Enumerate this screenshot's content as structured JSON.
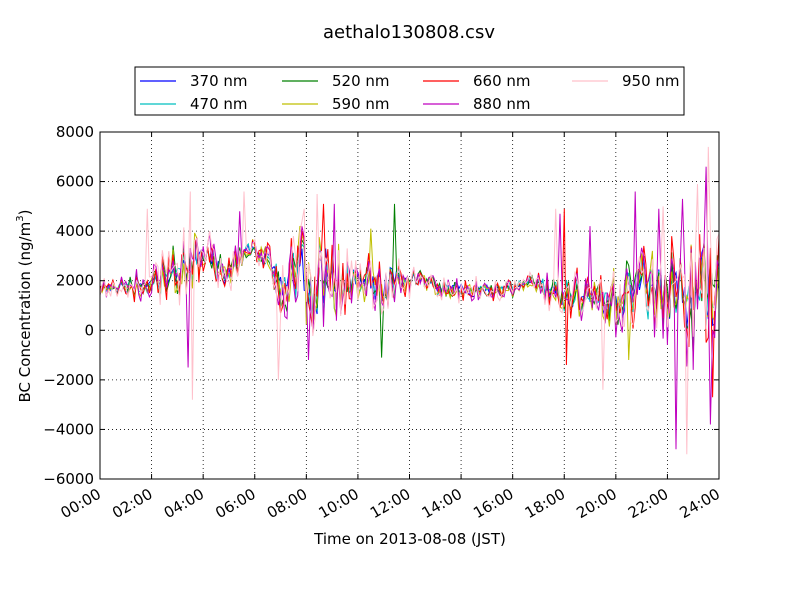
{
  "chart_data": {
    "type": "line",
    "title": "aethalo130808.csv",
    "xlabel": "Time on 2013-08-08 (JST)",
    "ylabel_main": "BC Concentration (ng/m",
    "ylabel_sup": "3",
    "ylabel_end": ")",
    "xlim": [
      "00:00",
      "24:00"
    ],
    "ylim": [
      -6000,
      8000
    ],
    "x_ticks": [
      "00:00",
      "02:00",
      "04:00",
      "06:00",
      "08:00",
      "10:00",
      "12:00",
      "14:00",
      "16:00",
      "18:00",
      "20:00",
      "22:00",
      "24:00"
    ],
    "y_ticks": [
      -6000,
      -4000,
      -2000,
      0,
      2000,
      4000,
      6000,
      8000
    ],
    "grid": true,
    "legend_position": "top",
    "sample_interval_minutes": 5,
    "series": [
      {
        "name": "370 nm",
        "color": "#0000ff"
      },
      {
        "name": "470 nm",
        "color": "#00bfbf"
      },
      {
        "name": "520 nm",
        "color": "#008000"
      },
      {
        "name": "590 nm",
        "color": "#bfbf00"
      },
      {
        "name": "660 nm",
        "color": "#ff0000"
      },
      {
        "name": "880 nm",
        "color": "#bf00bf"
      },
      {
        "name": "950 nm",
        "color": "#ffc0cb"
      }
    ],
    "baseline": [
      {
        "time": "00:00",
        "value": 1800
      },
      {
        "time": "01:00",
        "value": 1700
      },
      {
        "time": "02:00",
        "value": 1900
      },
      {
        "time": "03:00",
        "value": 2300
      },
      {
        "time": "04:00",
        "value": 3000
      },
      {
        "time": "05:00",
        "value": 2500
      },
      {
        "time": "06:00",
        "value": 3300
      },
      {
        "time": "07:00",
        "value": 2100
      },
      {
        "time": "08:00",
        "value": 2300
      },
      {
        "time": "09:00",
        "value": 1800
      },
      {
        "time": "10:00",
        "value": 1800
      },
      {
        "time": "11:00",
        "value": 2000
      },
      {
        "time": "12:00",
        "value": 2000
      },
      {
        "time": "13:00",
        "value": 1700
      },
      {
        "time": "14:00",
        "value": 1600
      },
      {
        "time": "15:00",
        "value": 1600
      },
      {
        "time": "16:00",
        "value": 1700
      },
      {
        "time": "17:00",
        "value": 1900
      },
      {
        "time": "18:00",
        "value": 1400
      },
      {
        "time": "19:00",
        "value": 1500
      },
      {
        "time": "20:00",
        "value": 1400
      },
      {
        "time": "21:00",
        "value": 1800
      },
      {
        "time": "22:00",
        "value": 1700
      },
      {
        "time": "23:00",
        "value": 1400
      },
      {
        "time": "24:00",
        "value": 1600
      }
    ],
    "noise_amplitude": [
      {
        "time": "00:00",
        "value": 300
      },
      {
        "time": "01:00",
        "value": 500
      },
      {
        "time": "02:00",
        "value": 700
      },
      {
        "time": "03:00",
        "value": 1300
      },
      {
        "time": "04:00",
        "value": 1000
      },
      {
        "time": "05:00",
        "value": 900
      },
      {
        "time": "06:00",
        "value": 400
      },
      {
        "time": "07:00",
        "value": 1300
      },
      {
        "time": "08:00",
        "value": 2000
      },
      {
        "time": "09:00",
        "value": 1800
      },
      {
        "time": "10:00",
        "value": 1200
      },
      {
        "time": "11:00",
        "value": 1300
      },
      {
        "time": "12:00",
        "value": 600
      },
      {
        "time": "13:00",
        "value": 500
      },
      {
        "time": "14:00",
        "value": 500
      },
      {
        "time": "15:00",
        "value": 500
      },
      {
        "time": "16:00",
        "value": 400
      },
      {
        "time": "17:00",
        "value": 500
      },
      {
        "time": "18:00",
        "value": 1000
      },
      {
        "time": "19:00",
        "value": 900
      },
      {
        "time": "20:00",
        "value": 1300
      },
      {
        "time": "21:00",
        "value": 1600
      },
      {
        "time": "22:00",
        "value": 1800
      },
      {
        "time": "23:00",
        "value": 2600
      },
      {
        "time": "24:00",
        "value": 2000
      }
    ],
    "spikes": [
      {
        "series": "950 nm",
        "time": "03:30",
        "value": 5600
      },
      {
        "series": "950 nm",
        "time": "03:35",
        "value": -2800
      },
      {
        "series": "880 nm",
        "time": "03:25",
        "value": -1500
      },
      {
        "series": "950 nm",
        "time": "01:50",
        "value": 4900
      },
      {
        "series": "950 nm",
        "time": "05:35",
        "value": 5600
      },
      {
        "series": "880 nm",
        "time": "05:25",
        "value": 4800
      },
      {
        "series": "950 nm",
        "time": "07:55",
        "value": 4900
      },
      {
        "series": "950 nm",
        "time": "06:55",
        "value": -2000
      },
      {
        "series": "880 nm",
        "time": "08:05",
        "value": -1200
      },
      {
        "series": "950 nm",
        "time": "08:25",
        "value": 5500
      },
      {
        "series": "880 nm",
        "time": "08:30",
        "value": 3200
      },
      {
        "series": "880 nm",
        "time": "09:05",
        "value": 5100
      },
      {
        "series": "660 nm",
        "time": "08:40",
        "value": 5100
      },
      {
        "series": "520 nm",
        "time": "11:25",
        "value": 5100
      },
      {
        "series": "520 nm",
        "time": "10:55",
        "value": -1100
      },
      {
        "series": "590 nm",
        "time": "10:30",
        "value": 4100
      },
      {
        "series": "950 nm",
        "time": "17:40",
        "value": 4900
      },
      {
        "series": "880 nm",
        "time": "17:50",
        "value": 4700
      },
      {
        "series": "660 nm",
        "time": "18:00",
        "value": 4900
      },
      {
        "series": "660 nm",
        "time": "18:05",
        "value": -1400
      },
      {
        "series": "880 nm",
        "time": "19:00",
        "value": 4200
      },
      {
        "series": "950 nm",
        "time": "19:30",
        "value": -2400
      },
      {
        "series": "590 nm",
        "time": "20:30",
        "value": -1200
      },
      {
        "series": "880 nm",
        "time": "20:45",
        "value": 5600
      },
      {
        "series": "880 nm",
        "time": "21:40",
        "value": 4900
      },
      {
        "series": "950 nm",
        "time": "21:50",
        "value": 5000
      },
      {
        "series": "880 nm",
        "time": "22:20",
        "value": -4800
      },
      {
        "series": "880 nm",
        "time": "22:35",
        "value": 5300
      },
      {
        "series": "950 nm",
        "time": "22:45",
        "value": -5000
      },
      {
        "series": "880 nm",
        "time": "23:00",
        "value": -1600
      },
      {
        "series": "950 nm",
        "time": "23:10",
        "value": 5900
      },
      {
        "series": "950 nm",
        "time": "23:35",
        "value": 7400
      },
      {
        "series": "880 nm",
        "time": "23:30",
        "value": 6600
      },
      {
        "series": "660 nm",
        "time": "23:45",
        "value": -2700
      },
      {
        "series": "880 nm",
        "time": "23:40",
        "value": -3800
      }
    ]
  }
}
